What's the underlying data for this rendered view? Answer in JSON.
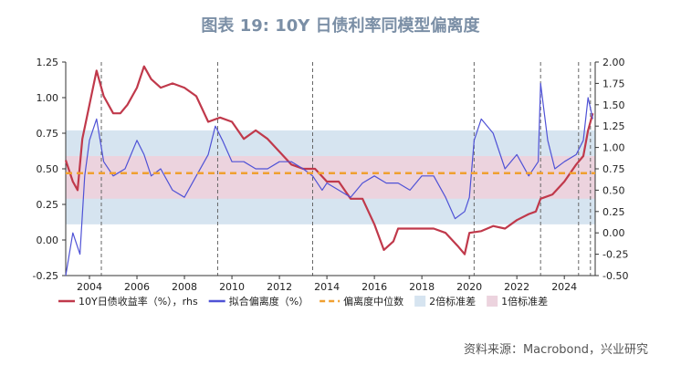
{
  "title": "图表 19: 10Y 日债利率同模型偏离度",
  "source": "资料来源：Macrobond，兴业研究",
  "chart_data": {
    "type": "line",
    "left_axis": {
      "ylim": [
        -0.25,
        1.25
      ],
      "ticks": [
        -0.25,
        0.0,
        0.25,
        0.5,
        0.75,
        1.0,
        1.25
      ],
      "tick_labels": [
        "-0.25",
        "0.00",
        "0.25",
        "0.50",
        "0.75",
        "1.00",
        "1.25"
      ]
    },
    "right_axis": {
      "ylim": [
        -0.5,
        2.0
      ],
      "ticks": [
        -0.5,
        -0.25,
        0,
        0.25,
        0.5,
        0.75,
        1.0,
        1.25,
        1.5,
        1.75,
        2.0
      ],
      "tick_labels": [
        "-0.50",
        "-0.25",
        "0.00",
        "0.25",
        "0.50",
        "0.75",
        "1.00",
        "1.25",
        "1.50",
        "1.75",
        "2.00"
      ]
    },
    "x_axis": {
      "xlim": [
        2003.0,
        2025.3
      ],
      "ticks": [
        2004,
        2006,
        2008,
        2010,
        2012,
        2014,
        2016,
        2018,
        2020,
        2022,
        2024
      ],
      "tick_labels": [
        "2004",
        "2006",
        "2008",
        "2010",
        "2012",
        "2014",
        "2016",
        "2018",
        "2020",
        "2022",
        "2024"
      ]
    },
    "vertical_dashed_lines_x": [
      2004.5,
      2009.4,
      2013.4,
      2020.2,
      2023.0,
      2024.6,
      2025.1
    ],
    "bands_right_axis": {
      "two_std": [
        0.1,
        1.2
      ],
      "one_std": [
        0.4,
        0.9
      ]
    },
    "median_right_axis": 0.7,
    "series": [
      {
        "name": "10Y日债收益率（%），rhs",
        "axis": "right",
        "color": "#c0394b",
        "x": [
          2003.0,
          2003.3,
          2003.5,
          2003.7,
          2004.0,
          2004.3,
          2004.6,
          2005.0,
          2005.3,
          2005.6,
          2006.0,
          2006.3,
          2006.6,
          2007.0,
          2007.5,
          2008.0,
          2008.5,
          2009.0,
          2009.5,
          2010.0,
          2010.5,
          2011.0,
          2011.5,
          2012.0,
          2012.5,
          2013.0,
          2013.5,
          2014.0,
          2014.5,
          2015.0,
          2015.5,
          2016.0,
          2016.4,
          2016.8,
          2017.0,
          2017.5,
          2018.0,
          2018.5,
          2019.0,
          2019.5,
          2019.8,
          2020.0,
          2020.5,
          2021.0,
          2021.5,
          2022.0,
          2022.5,
          2022.8,
          2023.0,
          2023.5,
          2024.0,
          2024.5,
          2024.8,
          2025.0,
          2025.2
        ],
        "y": [
          0.85,
          0.6,
          0.5,
          1.1,
          1.5,
          1.9,
          1.6,
          1.4,
          1.4,
          1.5,
          1.7,
          1.95,
          1.8,
          1.7,
          1.75,
          1.7,
          1.6,
          1.3,
          1.35,
          1.3,
          1.1,
          1.2,
          1.1,
          0.95,
          0.8,
          0.75,
          0.75,
          0.6,
          0.6,
          0.4,
          0.4,
          0.1,
          -0.2,
          -0.1,
          0.05,
          0.05,
          0.05,
          0.05,
          0.0,
          -0.15,
          -0.25,
          0.0,
          0.02,
          0.08,
          0.05,
          0.15,
          0.22,
          0.25,
          0.4,
          0.45,
          0.6,
          0.8,
          0.9,
          1.2,
          1.4
        ]
      },
      {
        "name": "拟合偏离度（%）",
        "axis": "left",
        "color": "#4f52d6",
        "x": [
          2003.0,
          2003.3,
          2003.6,
          2003.8,
          2004.0,
          2004.3,
          2004.6,
          2005.0,
          2005.5,
          2006.0,
          2006.3,
          2006.6,
          2007.0,
          2007.5,
          2008.0,
          2008.5,
          2009.0,
          2009.3,
          2009.6,
          2010.0,
          2010.5,
          2011.0,
          2011.5,
          2012.0,
          2012.5,
          2013.0,
          2013.4,
          2013.8,
          2014.0,
          2014.5,
          2015.0,
          2015.5,
          2016.0,
          2016.5,
          2017.0,
          2017.5,
          2018.0,
          2018.5,
          2019.0,
          2019.4,
          2019.8,
          2020.0,
          2020.2,
          2020.5,
          2021.0,
          2021.5,
          2022.0,
          2022.5,
          2022.9,
          2023.0,
          2023.3,
          2023.6,
          2024.0,
          2024.5,
          2024.8,
          2025.0,
          2025.2
        ],
        "y": [
          -0.25,
          0.05,
          -0.1,
          0.45,
          0.7,
          0.85,
          0.55,
          0.45,
          0.5,
          0.7,
          0.6,
          0.45,
          0.5,
          0.35,
          0.3,
          0.45,
          0.6,
          0.8,
          0.7,
          0.55,
          0.55,
          0.5,
          0.5,
          0.55,
          0.55,
          0.5,
          0.45,
          0.35,
          0.4,
          0.35,
          0.3,
          0.4,
          0.45,
          0.4,
          0.4,
          0.35,
          0.45,
          0.45,
          0.3,
          0.15,
          0.2,
          0.3,
          0.7,
          0.85,
          0.75,
          0.5,
          0.6,
          0.45,
          0.55,
          1.1,
          0.7,
          0.5,
          0.55,
          0.6,
          0.7,
          1.0,
          0.85
        ]
      },
      {
        "name": "偏离度中位数",
        "axis": "right",
        "color": "#f0a030",
        "dashed": true,
        "x": [
          2003.0,
          2025.3
        ],
        "y": [
          0.7,
          0.7
        ]
      }
    ],
    "legend": [
      {
        "label": "10Y日债收益率（%），rhs",
        "kind": "line",
        "color": "#c0394b"
      },
      {
        "label": "拟合偏离度（%）",
        "kind": "line",
        "color": "#4f52d6"
      },
      {
        "label": "偏离度中位数",
        "kind": "dash",
        "color": "#f0a030"
      },
      {
        "label": "2倍标准差",
        "kind": "box",
        "color": "#d6e4f0"
      },
      {
        "label": "1倍标准差",
        "kind": "box",
        "color": "#ecd3de"
      }
    ],
    "legend_position": "bottom"
  }
}
